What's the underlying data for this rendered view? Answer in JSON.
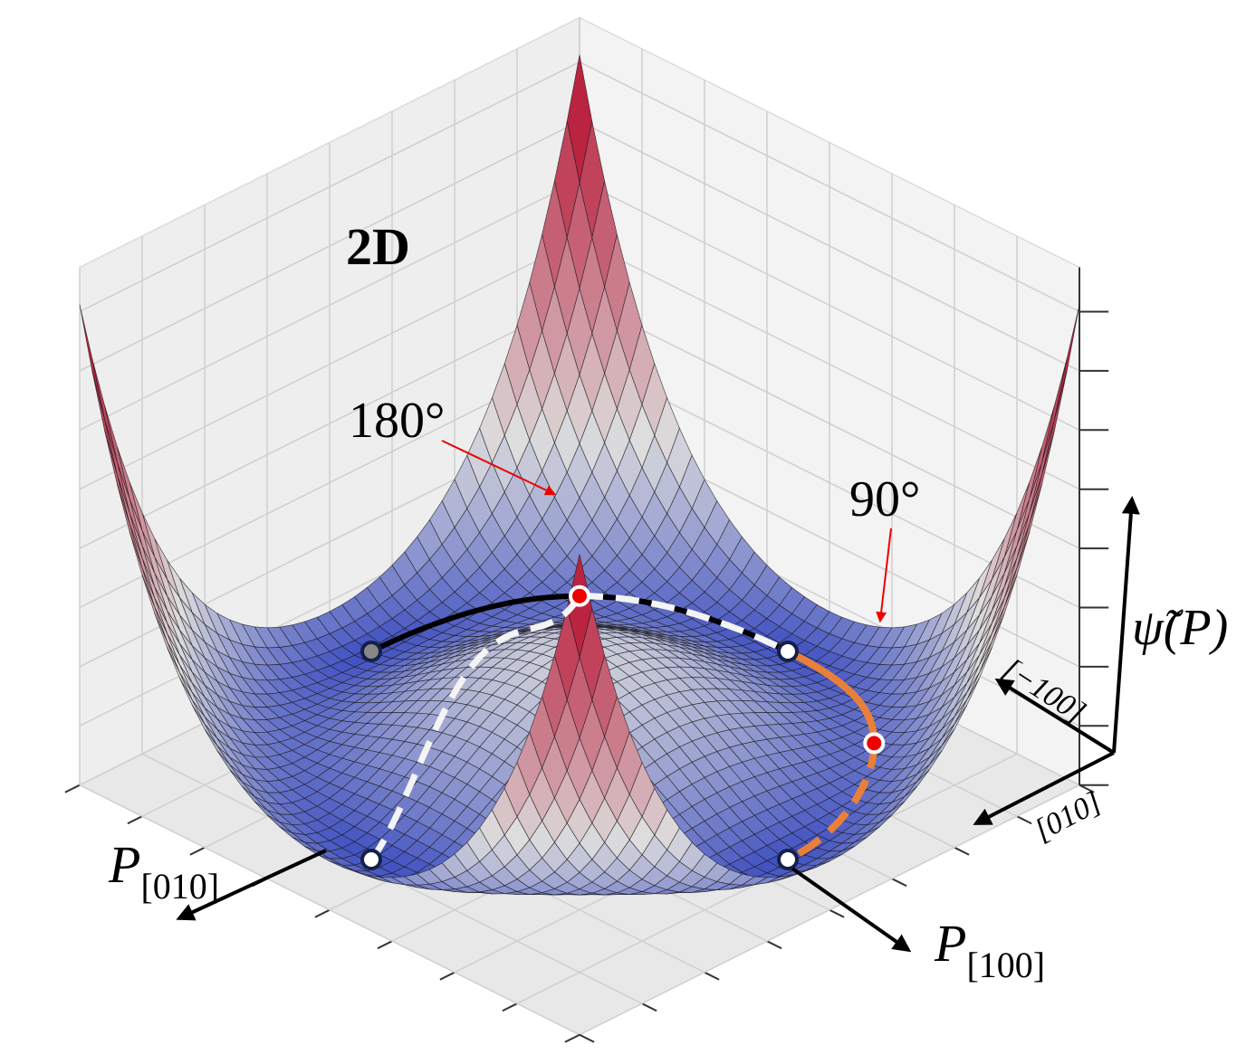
{
  "title": "2D",
  "annotations": {
    "saddle_180": "180°",
    "saddle_90": "90°"
  },
  "axes": {
    "energy": "ψ̃(P)",
    "direction_minus100": "[−100]",
    "direction_010": "[010]",
    "p_010": {
      "symbol": "P",
      "subscript": "[010]"
    },
    "p_100": {
      "symbol": "P",
      "subscript": "[100]"
    }
  }
}
